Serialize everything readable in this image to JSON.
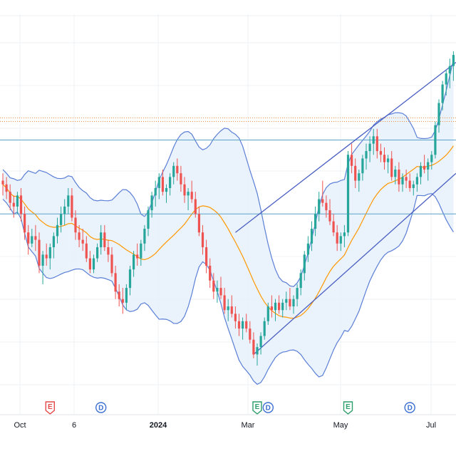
{
  "chart_data": {
    "type": "candlestick",
    "x_ticks": [
      "Oct",
      "6",
      "2024",
      "Mar",
      "May",
      "Jul"
    ],
    "bold_ticks": [
      "2024"
    ],
    "series": [
      {
        "name": "",
        "kind": "ohlc"
      },
      {
        "name": "",
        "kind": "bollinger-middle"
      },
      {
        "name": "",
        "kind": "bollinger-band"
      }
    ],
    "candles": [
      [
        50,
        52,
        46,
        49
      ],
      [
        49,
        51,
        45,
        47
      ],
      [
        47,
        49,
        42,
        44
      ],
      [
        44,
        46,
        40,
        43
      ],
      [
        43,
        47,
        41,
        46
      ],
      [
        46,
        48,
        39,
        41
      ],
      [
        41,
        43,
        34,
        36
      ],
      [
        36,
        38,
        30,
        33
      ],
      [
        33,
        37,
        32,
        35
      ],
      [
        35,
        38,
        31,
        34
      ],
      [
        34,
        36,
        25,
        27
      ],
      [
        27,
        31,
        22,
        30
      ],
      [
        30,
        33,
        27,
        29
      ],
      [
        29,
        33,
        26,
        32
      ],
      [
        32,
        36,
        29,
        35
      ],
      [
        35,
        40,
        33,
        38
      ],
      [
        38,
        43,
        36,
        41
      ],
      [
        41,
        45,
        38,
        43
      ],
      [
        43,
        48,
        41,
        46
      ],
      [
        46,
        48,
        39,
        40
      ],
      [
        40,
        42,
        34,
        36
      ],
      [
        36,
        38,
        32,
        34
      ],
      [
        34,
        37,
        31,
        33
      ],
      [
        33,
        35,
        28,
        29
      ],
      [
        29,
        31,
        25,
        26
      ],
      [
        26,
        30,
        25,
        29
      ],
      [
        29,
        33,
        28,
        32
      ],
      [
        32,
        38,
        30,
        36
      ],
      [
        36,
        38,
        31,
        32
      ],
      [
        32,
        34,
        28,
        30
      ],
      [
        30,
        32,
        24,
        25
      ],
      [
        25,
        27,
        18,
        20
      ],
      [
        20,
        22,
        16,
        18
      ],
      [
        18,
        21,
        14,
        17
      ],
      [
        17,
        22,
        15,
        21
      ],
      [
        21,
        27,
        19,
        26
      ],
      [
        26,
        31,
        24,
        30
      ],
      [
        30,
        33,
        27,
        29
      ],
      [
        29,
        34,
        27,
        33
      ],
      [
        33,
        38,
        31,
        37
      ],
      [
        37,
        43,
        35,
        42
      ],
      [
        42,
        47,
        40,
        46
      ],
      [
        46,
        50,
        43,
        48
      ],
      [
        48,
        52,
        45,
        51
      ],
      [
        51,
        53,
        46,
        47
      ],
      [
        47,
        49,
        44,
        48
      ],
      [
        48,
        52,
        46,
        51
      ],
      [
        51,
        55,
        49,
        54
      ],
      [
        54,
        56,
        50,
        52
      ],
      [
        52,
        54,
        47,
        49
      ],
      [
        49,
        51,
        44,
        46
      ],
      [
        46,
        48,
        42,
        47
      ],
      [
        47,
        50,
        44,
        45
      ],
      [
        45,
        47,
        40,
        41
      ],
      [
        41,
        43,
        35,
        36
      ],
      [
        36,
        38,
        30,
        32
      ],
      [
        32,
        34,
        25,
        27
      ],
      [
        27,
        29,
        21,
        23
      ],
      [
        23,
        25,
        18,
        20
      ],
      [
        20,
        23,
        17,
        21
      ],
      [
        21,
        24,
        18,
        19
      ],
      [
        19,
        21,
        14,
        15
      ],
      [
        15,
        18,
        12,
        16
      ],
      [
        16,
        19,
        13,
        14
      ],
      [
        14,
        16,
        10,
        12
      ],
      [
        12,
        14,
        8,
        10
      ],
      [
        10,
        13,
        7,
        12
      ],
      [
        12,
        14,
        9,
        10
      ],
      [
        10,
        12,
        6,
        7
      ],
      [
        7,
        9,
        2,
        3
      ],
      [
        3,
        6,
        0,
        5
      ],
      [
        5,
        9,
        3,
        8
      ],
      [
        8,
        13,
        7,
        12
      ],
      [
        12,
        17,
        11,
        16
      ],
      [
        16,
        19,
        13,
        15
      ],
      [
        15,
        18,
        12,
        17
      ],
      [
        17,
        19,
        14,
        15
      ],
      [
        15,
        18,
        13,
        17
      ],
      [
        17,
        20,
        15,
        18
      ],
      [
        18,
        21,
        15,
        16
      ],
      [
        16,
        19,
        14,
        18
      ],
      [
        18,
        22,
        16,
        21
      ],
      [
        21,
        26,
        19,
        25
      ],
      [
        25,
        31,
        23,
        30
      ],
      [
        30,
        35,
        28,
        33
      ],
      [
        33,
        39,
        31,
        37
      ],
      [
        37,
        43,
        35,
        41
      ],
      [
        41,
        47,
        39,
        45
      ],
      [
        45,
        50,
        43,
        44
      ],
      [
        44,
        46,
        40,
        42
      ],
      [
        42,
        45,
        38,
        39
      ],
      [
        39,
        41,
        35,
        36
      ],
      [
        36,
        38,
        31,
        33
      ],
      [
        33,
        36,
        31,
        35
      ],
      [
        35,
        38,
        32,
        36
      ],
      [
        36,
        58,
        35,
        57
      ],
      [
        57,
        60,
        52,
        54
      ],
      [
        54,
        56,
        48,
        50
      ],
      [
        50,
        53,
        47,
        52
      ],
      [
        52,
        57,
        50,
        56
      ],
      [
        56,
        60,
        53,
        58
      ],
      [
        58,
        62,
        55,
        60
      ],
      [
        60,
        64,
        57,
        62
      ],
      [
        62,
        64,
        56,
        58
      ],
      [
        58,
        60,
        55,
        57
      ],
      [
        57,
        59,
        53,
        55
      ],
      [
        55,
        57,
        52,
        56
      ],
      [
        56,
        58,
        50,
        51
      ],
      [
        51,
        54,
        49,
        53
      ],
      [
        53,
        55,
        47,
        49
      ],
      [
        49,
        52,
        47,
        51
      ],
      [
        51,
        53,
        48,
        50
      ],
      [
        50,
        52,
        47,
        48
      ],
      [
        48,
        50,
        46,
        49
      ],
      [
        49,
        52,
        47,
        51
      ],
      [
        51,
        55,
        49,
        54
      ],
      [
        54,
        57,
        52,
        53
      ],
      [
        53,
        56,
        50,
        55
      ],
      [
        55,
        58,
        53,
        57
      ],
      [
        57,
        66,
        56,
        65
      ],
      [
        65,
        72,
        63,
        71
      ],
      [
        71,
        77,
        69,
        76
      ],
      [
        76,
        80,
        73,
        79
      ],
      [
        79,
        83,
        75,
        81
      ],
      [
        81,
        85,
        77,
        84
      ]
    ],
    "ylim": [
      -10,
      95
    ],
    "grid": true,
    "colors": {
      "up": "#26a69a",
      "down": "#ef5350",
      "bollinger_line": "#5b7fd6",
      "bollinger_fill": "#e6f0fb",
      "middle_line": "#ff9800",
      "trend_line": "#4a5fc1",
      "h_line": "#5ba3c9",
      "dotted_line": "#ef8c4a",
      "earnings": "#e64a4a",
      "earnings_green": "#2e9e6a",
      "dividend": "#3b6fd1",
      "grid": "#eef0f3"
    },
    "events": [
      {
        "label": "E",
        "kind": "earnings-red",
        "index": 13
      },
      {
        "label": "D",
        "kind": "dividend",
        "index": 27
      },
      {
        "label": "E",
        "kind": "earnings-green",
        "index": 70
      },
      {
        "label": "D",
        "kind": "dividend",
        "index": 73
      },
      {
        "label": "E",
        "kind": "earnings-green",
        "index": 95
      },
      {
        "label": "D",
        "kind": "dividend",
        "index": 112
      }
    ]
  }
}
